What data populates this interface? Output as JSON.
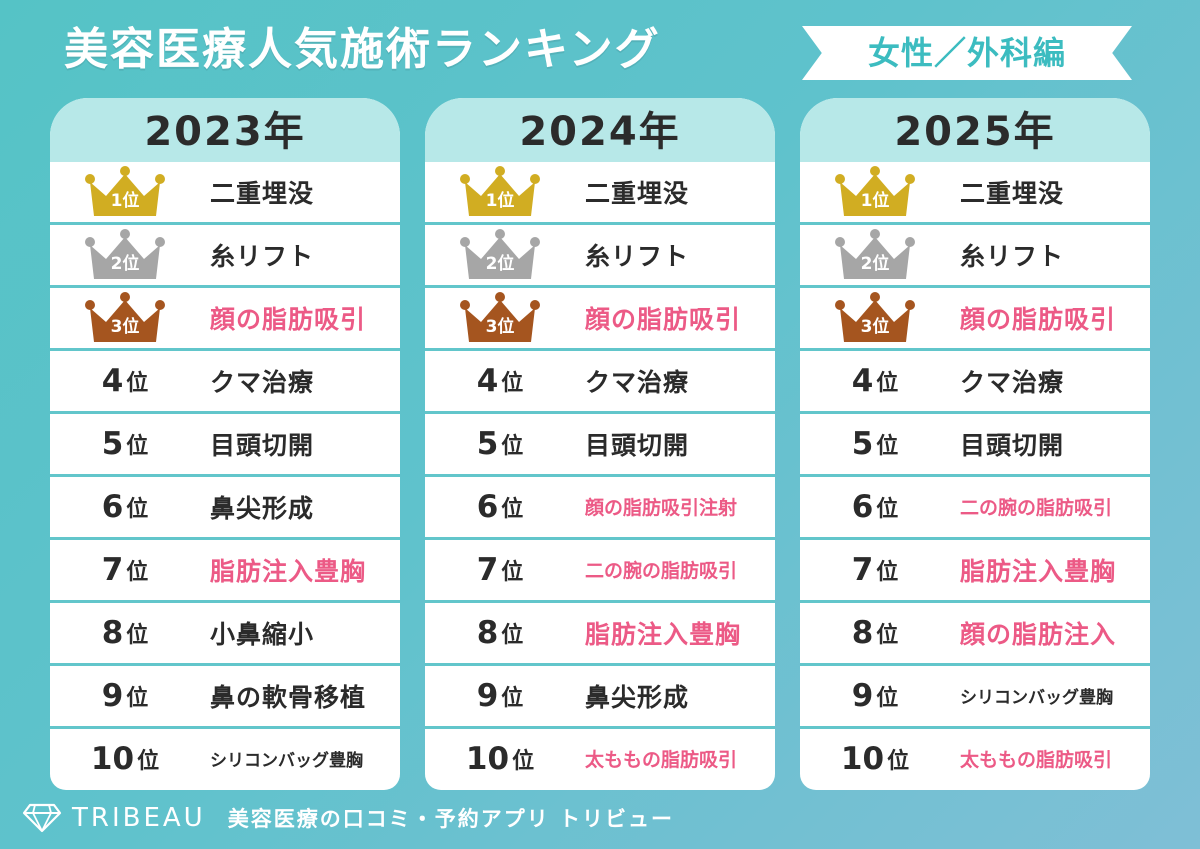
{
  "title": "美容医療人気施術ランキング",
  "category_ribbon": "女性／外科編",
  "rank_suffix": "位",
  "colors": {
    "gold": "#d1ad22",
    "silver": "#a6a6a6",
    "bronze": "#a5551f",
    "pink": "#ec5a86",
    "teal": "#62c6cb"
  },
  "columns": [
    {
      "year": "2023年",
      "rows": [
        {
          "rank": "1",
          "procedure": "二重埋没",
          "highlight": false
        },
        {
          "rank": "2",
          "procedure": "糸リフト",
          "highlight": false
        },
        {
          "rank": "3",
          "procedure": "顔の脂肪吸引",
          "highlight": true
        },
        {
          "rank": "4",
          "procedure": "クマ治療",
          "highlight": false
        },
        {
          "rank": "5",
          "procedure": "目頭切開",
          "highlight": false
        },
        {
          "rank": "6",
          "procedure": "鼻尖形成",
          "highlight": false
        },
        {
          "rank": "7",
          "procedure": "脂肪注入豊胸",
          "highlight": true
        },
        {
          "rank": "8",
          "procedure": "小鼻縮小",
          "highlight": false
        },
        {
          "rank": "9",
          "procedure": "鼻の軟骨移植",
          "highlight": false
        },
        {
          "rank": "10",
          "procedure": "シリコンバッグ豊胸",
          "highlight": false
        }
      ]
    },
    {
      "year": "2024年",
      "rows": [
        {
          "rank": "1",
          "procedure": "二重埋没",
          "highlight": false
        },
        {
          "rank": "2",
          "procedure": "糸リフト",
          "highlight": false
        },
        {
          "rank": "3",
          "procedure": "顔の脂肪吸引",
          "highlight": true
        },
        {
          "rank": "4",
          "procedure": "クマ治療",
          "highlight": false
        },
        {
          "rank": "5",
          "procedure": "目頭切開",
          "highlight": false
        },
        {
          "rank": "6",
          "procedure": "顔の脂肪吸引注射",
          "highlight": true
        },
        {
          "rank": "7",
          "procedure": "二の腕の脂肪吸引",
          "highlight": true
        },
        {
          "rank": "8",
          "procedure": "脂肪注入豊胸",
          "highlight": true
        },
        {
          "rank": "9",
          "procedure": "鼻尖形成",
          "highlight": false
        },
        {
          "rank": "10",
          "procedure": "太ももの脂肪吸引",
          "highlight": true
        }
      ]
    },
    {
      "year": "2025年",
      "rows": [
        {
          "rank": "1",
          "procedure": "二重埋没",
          "highlight": false
        },
        {
          "rank": "2",
          "procedure": "糸リフト",
          "highlight": false
        },
        {
          "rank": "3",
          "procedure": "顔の脂肪吸引",
          "highlight": true
        },
        {
          "rank": "4",
          "procedure": "クマ治療",
          "highlight": false
        },
        {
          "rank": "5",
          "procedure": "目頭切開",
          "highlight": false
        },
        {
          "rank": "6",
          "procedure": "二の腕の脂肪吸引",
          "highlight": true
        },
        {
          "rank": "7",
          "procedure": "脂肪注入豊胸",
          "highlight": true
        },
        {
          "rank": "8",
          "procedure": "顔の脂肪注入",
          "highlight": true
        },
        {
          "rank": "9",
          "procedure": "シリコンバッグ豊胸",
          "highlight": false
        },
        {
          "rank": "10",
          "procedure": "太ももの脂肪吸引",
          "highlight": true
        }
      ]
    }
  ],
  "footer": {
    "logo_icon": "diamond-icon",
    "brand": "TRIBEAU",
    "tagline": "美容医療の口コミ・予約アプリ トリビュー"
  }
}
